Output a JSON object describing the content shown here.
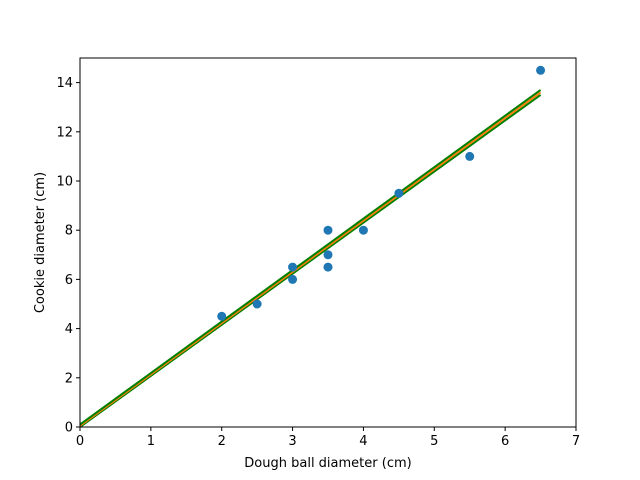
{
  "chart_data": {
    "type": "scatter",
    "title": "",
    "xlabel": "Dough ball diameter (cm)",
    "ylabel": "Cookie diameter (cm)",
    "xlim": [
      0,
      7
    ],
    "ylim": [
      0,
      15
    ],
    "xticks": [
      0,
      1,
      2,
      3,
      4,
      5,
      6,
      7
    ],
    "yticks": [
      0,
      2,
      4,
      6,
      8,
      10,
      12,
      14
    ],
    "grid": false,
    "points": {
      "color": "#1f77b4",
      "x": [
        2.0,
        2.5,
        3.0,
        3.0,
        3.5,
        3.5,
        3.5,
        4.0,
        4.5,
        5.5,
        6.5
      ],
      "y": [
        4.5,
        5.0,
        6.0,
        6.5,
        6.5,
        7.0,
        8.0,
        8.0,
        9.5,
        11.0,
        14.5
      ]
    },
    "lines": [
      {
        "color": "#008000",
        "x": [
          0,
          6.5
        ],
        "y": [
          0.0,
          13.5
        ]
      },
      {
        "color": "#ff7f0e",
        "x": [
          0,
          6.5
        ],
        "y": [
          0.05,
          13.6
        ]
      },
      {
        "color": "#008000",
        "x": [
          0,
          6.5
        ],
        "y": [
          0.1,
          13.7
        ]
      }
    ]
  }
}
